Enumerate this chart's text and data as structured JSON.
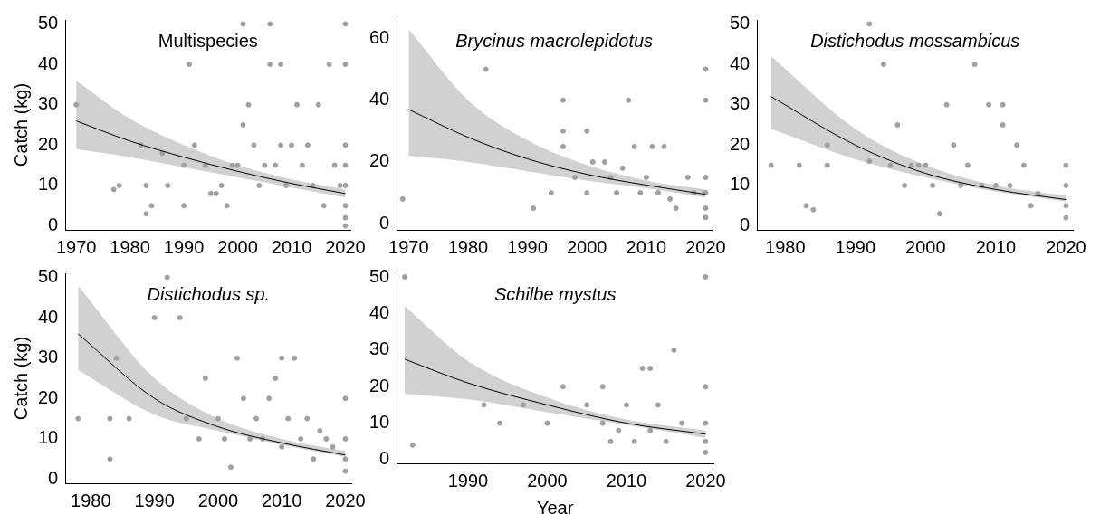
{
  "chart_data": [
    {
      "type": "scatter",
      "title": "Multispecies",
      "ylabel": "Catch (kg)",
      "xlim": [
        1968,
        2021
      ],
      "xticks": [
        1970,
        1980,
        1990,
        2000,
        2010,
        2020
      ],
      "ylim": [
        -1,
        51
      ],
      "yticks": [
        0,
        10,
        20,
        30,
        40,
        50
      ],
      "grid": false,
      "legend": false,
      "series": [
        {
          "marker": "circle",
          "color": "#a0a0a0",
          "x": [
            1970,
            1977,
            1978,
            1982,
            1983,
            1983,
            1984,
            1986,
            1987,
            1990,
            1990,
            1991,
            1992,
            1994,
            1995,
            1996,
            1997,
            1998,
            1999,
            2000,
            2001,
            2001,
            2002,
            2003,
            2004,
            2005,
            2006,
            2006,
            2007,
            2008,
            2008,
            2009,
            2010,
            2011,
            2012,
            2013,
            2014,
            2015,
            2016,
            2017,
            2018,
            2019,
            2020,
            2020,
            2020,
            2020,
            2020,
            2020,
            2020,
            2020
          ],
          "values": [
            30,
            9,
            10,
            20,
            10,
            3,
            5,
            18,
            10,
            15,
            5,
            40,
            20,
            15,
            8,
            8,
            10,
            5,
            15,
            15,
            50,
            25,
            30,
            20,
            10,
            15,
            40,
            50,
            15,
            40,
            20,
            10,
            20,
            30,
            15,
            20,
            10,
            30,
            5,
            40,
            15,
            10,
            50,
            40,
            20,
            15,
            10,
            5,
            2,
            0
          ]
        },
        {
          "type": "line",
          "color": "#000000",
          "x": [
            1970,
            1980,
            1990,
            2000,
            2010,
            2020
          ],
          "marker": "none",
          "values": [
            26,
            21,
            17,
            13.5,
            10.5,
            8
          ],
          "lower": [
            19,
            17,
            14.5,
            12,
            9.5,
            7
          ],
          "upper": [
            36,
            26.5,
            20,
            15,
            11.5,
            9
          ]
        }
      ]
    },
    {
      "type": "scatter",
      "title": "Brycinus macrolepidotus",
      "xlim": [
        1968,
        2021
      ],
      "xticks": [
        1970,
        1980,
        1990,
        2000,
        2010,
        2020
      ],
      "ylim": [
        -2,
        66
      ],
      "yticks": [
        0,
        20,
        40,
        60
      ],
      "grid": false,
      "legend": false,
      "series": [
        {
          "marker": "circle",
          "color": "#a0a0a0",
          "x": [
            1969,
            1983,
            1991,
            1994,
            1996,
            1996,
            1996,
            1998,
            2000,
            2000,
            2001,
            2003,
            2004,
            2005,
            2006,
            2007,
            2008,
            2009,
            2010,
            2011,
            2012,
            2013,
            2014,
            2015,
            2017,
            2018,
            2020,
            2020,
            2020,
            2020,
            2020,
            2020
          ],
          "values": [
            8,
            50,
            5,
            10,
            40,
            25,
            30,
            15,
            30,
            10,
            20,
            20,
            15,
            10,
            18,
            40,
            25,
            10,
            15,
            25,
            10,
            25,
            8,
            5,
            15,
            10,
            50,
            40,
            15,
            10,
            5,
            2
          ]
        },
        {
          "type": "line",
          "color": "#000000",
          "x": [
            1970,
            1980,
            1990,
            2000,
            2010,
            2020
          ],
          "marker": "none",
          "values": [
            37,
            28,
            21,
            16,
            12.5,
            9.5
          ],
          "lower": [
            22,
            20,
            17,
            14,
            11.5,
            8.5
          ],
          "upper": [
            63,
            40,
            27,
            19,
            14,
            11
          ]
        }
      ]
    },
    {
      "type": "scatter",
      "title": "Distichodus mossambicus",
      "xlim": [
        1976,
        2021
      ],
      "xticks": [
        1980,
        1990,
        2000,
        2010,
        2020
      ],
      "ylim": [
        -1,
        51
      ],
      "yticks": [
        0,
        10,
        20,
        30,
        40,
        50
      ],
      "grid": false,
      "legend": false,
      "series": [
        {
          "marker": "circle",
          "color": "#a0a0a0",
          "x": [
            1978,
            1982,
            1983,
            1984,
            1986,
            1986,
            1992,
            1992,
            1994,
            1995,
            1996,
            1997,
            1998,
            1999,
            2000,
            2001,
            2002,
            2003,
            2004,
            2005,
            2006,
            2007,
            2008,
            2009,
            2010,
            2011,
            2011,
            2012,
            2013,
            2014,
            2015,
            2016,
            2020,
            2020,
            2020,
            2020
          ],
          "values": [
            15,
            15,
            5,
            4,
            20,
            15,
            50,
            16,
            40,
            15,
            25,
            10,
            15,
            15,
            15,
            10,
            3,
            30,
            20,
            10,
            15,
            40,
            10,
            30,
            10,
            30,
            25,
            10,
            20,
            15,
            5,
            8,
            15,
            10,
            5,
            2
          ]
        },
        {
          "type": "line",
          "color": "#000000",
          "x": [
            1978,
            1990,
            2000,
            2010,
            2020
          ],
          "marker": "none",
          "values": [
            32,
            20,
            13,
            9,
            6.5
          ],
          "lower": [
            24,
            16.5,
            12,
            8.5,
            6
          ],
          "upper": [
            42,
            24,
            15,
            10,
            7.5
          ]
        }
      ]
    },
    {
      "type": "scatter",
      "title": "Distichodus sp.",
      "ylabel": "Catch (kg)",
      "xlim": [
        1976,
        2021
      ],
      "xticks": [
        1980,
        1990,
        2000,
        2010,
        2020
      ],
      "ylim": [
        -1,
        51
      ],
      "yticks": [
        0,
        10,
        20,
        30,
        40,
        50
      ],
      "grid": false,
      "legend": false,
      "series": [
        {
          "marker": "circle",
          "color": "#a0a0a0",
          "x": [
            1978,
            1983,
            1983,
            1984,
            1986,
            1990,
            1992,
            1994,
            1995,
            1997,
            1998,
            2000,
            2001,
            2002,
            2003,
            2004,
            2005,
            2006,
            2007,
            2008,
            2009,
            2010,
            2010,
            2011,
            2012,
            2013,
            2014,
            2015,
            2016,
            2017,
            2018,
            2020,
            2020,
            2020,
            2020
          ],
          "values": [
            15,
            15,
            5,
            30,
            15,
            40,
            50,
            40,
            15,
            10,
            25,
            15,
            10,
            3,
            30,
            20,
            10,
            15,
            10,
            20,
            25,
            30,
            8,
            15,
            30,
            10,
            15,
            5,
            12,
            10,
            8,
            20,
            10,
            5,
            2
          ]
        },
        {
          "type": "line",
          "color": "#000000",
          "x": [
            1978,
            1990,
            2000,
            2010,
            2020
          ],
          "marker": "none",
          "values": [
            36,
            20,
            13,
            9,
            6
          ],
          "lower": [
            27,
            16,
            12,
            8.5,
            5.5
          ],
          "upper": [
            48,
            25,
            15,
            10,
            7
          ]
        }
      ]
    },
    {
      "type": "scatter",
      "title": "Schilbe mystus",
      "xlabel": "Year",
      "xlim": [
        1981,
        2021
      ],
      "xticks": [
        1990,
        2000,
        2010,
        2020
      ],
      "ylim": [
        -1,
        51
      ],
      "yticks": [
        0,
        10,
        20,
        30,
        40,
        50
      ],
      "grid": false,
      "legend": false,
      "series": [
        {
          "marker": "circle",
          "color": "#a0a0a0",
          "x": [
            1982,
            1983,
            1992,
            1994,
            1997,
            2000,
            2002,
            2005,
            2007,
            2007,
            2008,
            2009,
            2010,
            2011,
            2012,
            2013,
            2013,
            2014,
            2015,
            2016,
            2017,
            2020,
            2020,
            2020,
            2020,
            2020
          ],
          "values": [
            50,
            4,
            15,
            10,
            15,
            10,
            20,
            15,
            20,
            10,
            5,
            8,
            15,
            5,
            25,
            25,
            8,
            15,
            5,
            30,
            10,
            50,
            20,
            10,
            5,
            2
          ]
        },
        {
          "type": "line",
          "color": "#000000",
          "x": [
            1982,
            1990,
            2000,
            2010,
            2020
          ],
          "marker": "none",
          "values": [
            27.5,
            21,
            15,
            10,
            7
          ],
          "lower": [
            18,
            16.5,
            13,
            9.5,
            6
          ],
          "upper": [
            42,
            27,
            17,
            11,
            8
          ]
        }
      ]
    }
  ]
}
